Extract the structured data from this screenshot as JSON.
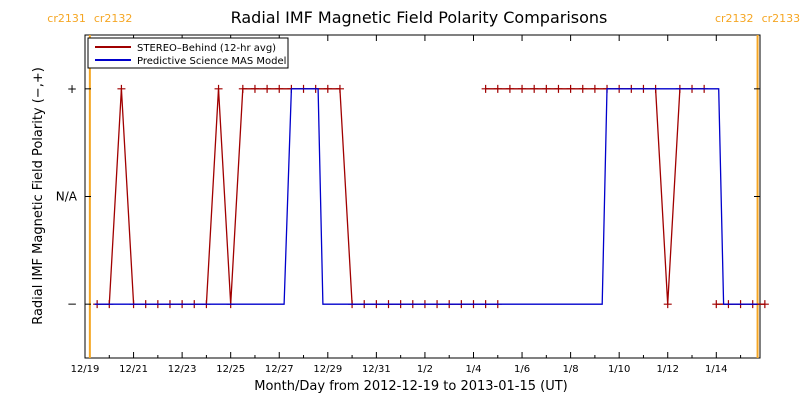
{
  "chart_data": {
    "type": "line",
    "title": "Radial IMF Magnetic Field Polarity Comparisons",
    "xlabel": "Month/Day from 2012-12-19 to 2013-01-15 (UT)",
    "ylabel": "Radial IMF Magnetic Field Polarity (−,+)",
    "x_unit": "days",
    "xlim": [
      0,
      27.8
    ],
    "ylim": [
      -1.5,
      1.5
    ],
    "x_tick_values": [
      0,
      2,
      4,
      6,
      8,
      10,
      12,
      14,
      16,
      18,
      20,
      22,
      24,
      26
    ],
    "x_tick_labels": [
      "12/19",
      "12/21",
      "12/23",
      "12/25",
      "12/27",
      "12/29",
      "12/31",
      "1/2",
      "1/4",
      "1/6",
      "1/8",
      "1/10",
      "1/12",
      "1/14"
    ],
    "y_ticks": [
      {
        "value": 1,
        "label": "+"
      },
      {
        "value": 0,
        "label": "N/A"
      },
      {
        "value": -1,
        "label": "−"
      }
    ],
    "carrington_markers": [
      {
        "x": 0.2,
        "label_left": "cr2131",
        "label_right": "cr2132"
      },
      {
        "x": 27.7,
        "label_left": "cr2132",
        "label_right": "cr2133"
      }
    ],
    "marker_color": "#f5a623",
    "series": [
      {
        "name": "STEREO–Behind (12-hr avg)",
        "color": "#a00000",
        "marker": "plus",
        "points": [
          [
            0.5,
            -1
          ],
          [
            1.0,
            -1
          ],
          [
            1.5,
            1
          ],
          [
            2.0,
            -1
          ],
          [
            2.5,
            -1
          ],
          [
            3.0,
            -1
          ],
          [
            3.5,
            -1
          ],
          [
            4.0,
            -1
          ],
          [
            4.5,
            -1
          ],
          [
            5.0,
            -1
          ],
          [
            5.5,
            1
          ],
          [
            6.0,
            -1
          ],
          [
            6.5,
            1
          ],
          [
            7.0,
            1
          ],
          [
            7.5,
            1
          ],
          [
            8.0,
            1
          ],
          [
            8.5,
            1
          ],
          [
            9.0,
            1
          ],
          [
            9.5,
            1
          ],
          [
            10.0,
            1
          ],
          [
            10.5,
            1
          ],
          [
            11.0,
            -1
          ],
          [
            11.5,
            -1
          ],
          [
            12.0,
            -1
          ],
          [
            12.5,
            -1
          ],
          [
            13.0,
            -1
          ],
          [
            13.5,
            -1
          ],
          [
            14.0,
            -1
          ],
          [
            14.5,
            -1
          ],
          [
            15.0,
            -1
          ],
          [
            15.5,
            -1
          ],
          [
            16.0,
            -1
          ],
          [
            16.5,
            -1
          ],
          [
            17.0,
            -1
          ],
          null,
          [
            16.5,
            1
          ],
          [
            17.0,
            1
          ],
          [
            17.5,
            1
          ],
          [
            18.0,
            1
          ],
          [
            18.5,
            1
          ],
          [
            19.0,
            1
          ],
          [
            19.5,
            1
          ],
          [
            20.0,
            1
          ],
          [
            20.5,
            1
          ],
          [
            21.0,
            1
          ],
          [
            21.5,
            1
          ],
          [
            22.0,
            1
          ],
          [
            22.5,
            1
          ],
          [
            23.0,
            1
          ],
          [
            23.5,
            1
          ],
          [
            24.0,
            -1
          ],
          [
            24.5,
            1
          ],
          [
            25.0,
            1
          ],
          [
            25.5,
            1
          ],
          null,
          [
            26.0,
            -1
          ],
          [
            26.5,
            -1
          ],
          [
            27.0,
            -1
          ],
          [
            27.5,
            -1
          ],
          [
            28.0,
            -1
          ]
        ]
      },
      {
        "name": "Predictive Science MAS Model",
        "color": "#0000cc",
        "marker": "none",
        "points": [
          [
            0.4,
            -1
          ],
          [
            8.2,
            -1
          ],
          [
            8.5,
            1
          ],
          [
            9.6,
            1
          ],
          [
            9.8,
            -1
          ],
          [
            21.3,
            -1
          ],
          [
            21.5,
            1
          ],
          [
            26.1,
            1
          ],
          [
            26.3,
            -1
          ],
          [
            27.7,
            -1
          ]
        ]
      }
    ],
    "legend_position": "top-left"
  }
}
